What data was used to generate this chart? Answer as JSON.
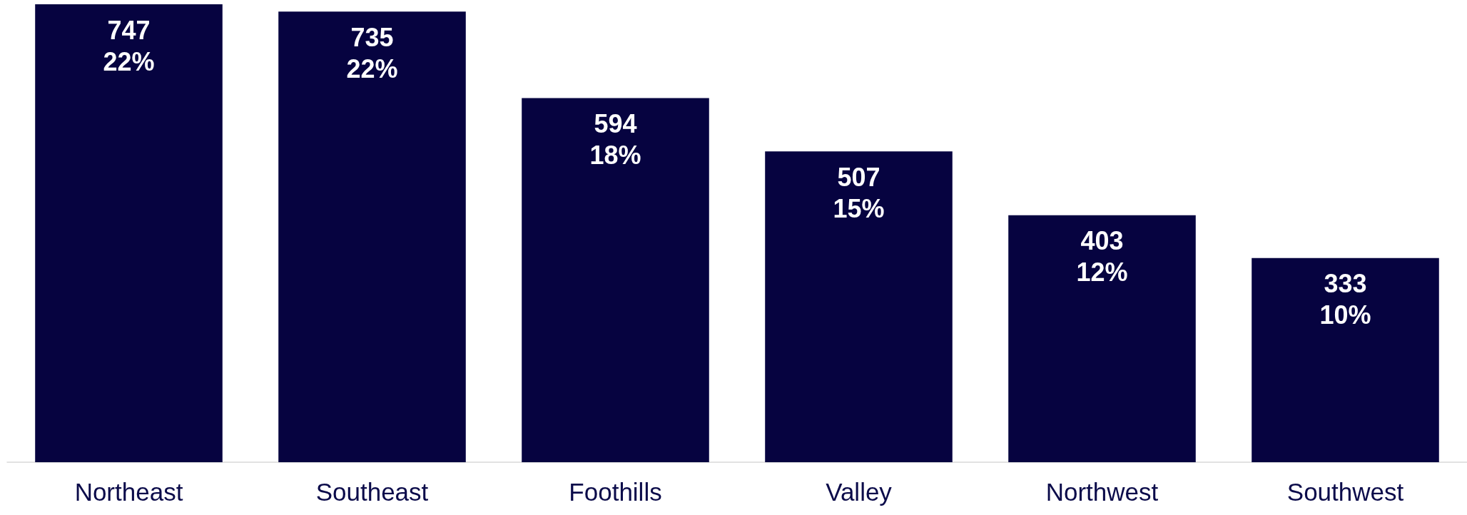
{
  "chart_data": {
    "type": "bar",
    "categories": [
      "Northeast",
      "Southeast",
      "Foothills",
      "Valley",
      "Northwest",
      "Southwest"
    ],
    "values": [
      747,
      735,
      594,
      507,
      403,
      333
    ],
    "value_labels": [
      "747\n22%",
      "735\n22%",
      "594\n18%",
      "507\n15%",
      "403\n12%",
      "333\n10%"
    ],
    "color": "#060340"
  }
}
